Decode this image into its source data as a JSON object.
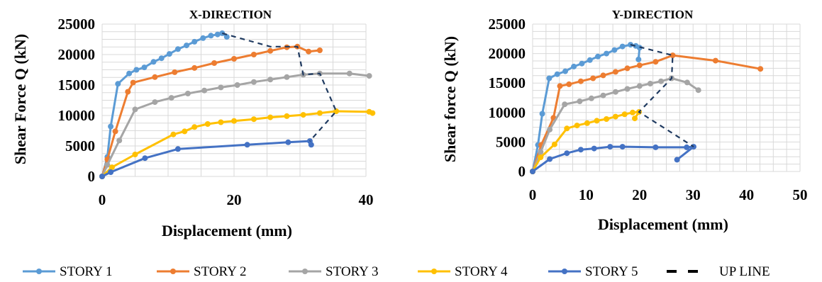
{
  "chart_data": [
    {
      "type": "line",
      "title": "X-DIRECTION",
      "xlabel": "Displacement (mm)",
      "ylabel": "Shear Force Q (kN)",
      "xlim": [
        0,
        40
      ],
      "ylim": [
        0,
        25000
      ],
      "xticks": [
        "0",
        "20",
        "40"
      ],
      "yticks": [
        "0",
        "5000",
        "10000",
        "15000",
        "20000",
        "25000"
      ],
      "grid": true,
      "series": [
        {
          "name": "STORY 1",
          "color": "#5b9bd5",
          "points": [
            [
              0,
              0
            ],
            [
              0.8,
              3200
            ],
            [
              1.3,
              8200
            ],
            [
              2.4,
              15200
            ],
            [
              4.1,
              16900
            ],
            [
              5.2,
              17500
            ],
            [
              6.4,
              17900
            ],
            [
              7.8,
              18800
            ],
            [
              9,
              19400
            ],
            [
              10.2,
              20100
            ],
            [
              11.5,
              20900
            ],
            [
              12.8,
              21500
            ],
            [
              14,
              22100
            ],
            [
              15.3,
              22700
            ],
            [
              16.5,
              23100
            ],
            [
              17.5,
              23300
            ],
            [
              18.2,
              23500
            ],
            [
              18.9,
              22900
            ]
          ]
        },
        {
          "name": "STORY 2",
          "color": "#ed7d31",
          "points": [
            [
              0,
              0
            ],
            [
              0.8,
              2800
            ],
            [
              2,
              7400
            ],
            [
              3.9,
              13900
            ],
            [
              4.7,
              15400
            ],
            [
              8,
              16300
            ],
            [
              11,
              17100
            ],
            [
              14,
              17800
            ],
            [
              17,
              18600
            ],
            [
              20,
              19300
            ],
            [
              23,
              20000
            ],
            [
              25.5,
              20600
            ],
            [
              28,
              21200
            ],
            [
              29.6,
              21300
            ],
            [
              31.3,
              20500
            ],
            [
              33,
              20700
            ]
          ]
        },
        {
          "name": "STORY 3",
          "color": "#a5a5a5",
          "points": [
            [
              0,
              0
            ],
            [
              0.8,
              1900
            ],
            [
              2.6,
              5900
            ],
            [
              5,
              11000
            ],
            [
              8,
              12200
            ],
            [
              10.5,
              12900
            ],
            [
              13,
              13600
            ],
            [
              15.5,
              14100
            ],
            [
              18,
              14600
            ],
            [
              20.5,
              15000
            ],
            [
              23,
              15500
            ],
            [
              25.5,
              15900
            ],
            [
              28,
              16300
            ],
            [
              30.5,
              16700
            ],
            [
              33,
              16900
            ],
            [
              37.5,
              16900
            ],
            [
              40.5,
              16500
            ]
          ]
        },
        {
          "name": "STORY 4",
          "color": "#ffc000",
          "points": [
            [
              0,
              0
            ],
            [
              1.5,
              1500
            ],
            [
              5,
              3600
            ],
            [
              10.8,
              6900
            ],
            [
              12.5,
              7400
            ],
            [
              14,
              8100
            ],
            [
              16,
              8600
            ],
            [
              18,
              8900
            ],
            [
              20,
              9100
            ],
            [
              23,
              9400
            ],
            [
              25.5,
              9700
            ],
            [
              28,
              9900
            ],
            [
              30.5,
              10100
            ],
            [
              33,
              10400
            ],
            [
              35.5,
              10700
            ],
            [
              40.5,
              10600
            ],
            [
              41,
              10400
            ]
          ]
        },
        {
          "name": "STORY 5",
          "color": "#4472c4",
          "points": [
            [
              0,
              0
            ],
            [
              1.3,
              700
            ],
            [
              6.5,
              3000
            ],
            [
              11.5,
              4500
            ],
            [
              22,
              5200
            ],
            [
              28.2,
              5600
            ],
            [
              31.5,
              5800
            ],
            [
              31.7,
              5200
            ]
          ]
        },
        {
          "name": "UP LINE",
          "color": "#1f3a60",
          "dashed": true,
          "points": [
            [
              18.2,
              23500
            ],
            [
              25.5,
              21300
            ],
            [
              29.6,
              21300
            ],
            [
              30.5,
              16700
            ],
            [
              33,
              16900
            ],
            [
              35.5,
              10700
            ],
            [
              31.5,
              5800
            ]
          ]
        }
      ]
    },
    {
      "type": "line",
      "title": "Y-DIRECTION",
      "xlabel": "Displacement (mm)",
      "ylabel": "Shear force Q (kN)",
      "xlim": [
        0,
        50
      ],
      "ylim": [
        0,
        25000
      ],
      "xticks": [
        "0",
        "10",
        "20",
        "30",
        "40",
        "50"
      ],
      "yticks": [
        "0",
        "5000",
        "10000",
        "15000",
        "20000",
        "25000"
      ],
      "grid": true,
      "series": [
        {
          "name": "STORY 1",
          "color": "#5b9bd5",
          "points": [
            [
              0,
              0
            ],
            [
              1,
              4500
            ],
            [
              1.8,
              9800
            ],
            [
              3.1,
              15800
            ],
            [
              4.6,
              16500
            ],
            [
              6.1,
              17000
            ],
            [
              7.7,
              17800
            ],
            [
              9.2,
              18300
            ],
            [
              10.7,
              18900
            ],
            [
              12.2,
              19500
            ],
            [
              13.8,
              20000
            ],
            [
              15.3,
              20600
            ],
            [
              16.8,
              21200
            ],
            [
              18.3,
              21500
            ],
            [
              19.3,
              21300
            ],
            [
              20,
              21000
            ],
            [
              19.8,
              19000
            ]
          ]
        },
        {
          "name": "STORY 2",
          "color": "#ed7d31",
          "points": [
            [
              0,
              0
            ],
            [
              1.6,
              4500
            ],
            [
              3.9,
              9100
            ],
            [
              5.1,
              14500
            ],
            [
              6.8,
              14800
            ],
            [
              9,
              15300
            ],
            [
              11.3,
              15800
            ],
            [
              13.2,
              16300
            ],
            [
              15.5,
              16900
            ],
            [
              17.7,
              17500
            ],
            [
              20,
              18000
            ],
            [
              23,
              18600
            ],
            [
              26.2,
              19700
            ],
            [
              34.2,
              18800
            ],
            [
              42.6,
              17400
            ]
          ]
        },
        {
          "name": "STORY 3",
          "color": "#a5a5a5",
          "points": [
            [
              0,
              0
            ],
            [
              1.5,
              3300
            ],
            [
              3.2,
              7100
            ],
            [
              6,
              11400
            ],
            [
              8.8,
              11900
            ],
            [
              11,
              12400
            ],
            [
              13.2,
              12900
            ],
            [
              15.5,
              13500
            ],
            [
              17.7,
              14000
            ],
            [
              20,
              14500
            ],
            [
              22,
              14900
            ],
            [
              24,
              15300
            ],
            [
              26,
              15800
            ],
            [
              28.9,
              15100
            ],
            [
              31,
              13800
            ]
          ]
        },
        {
          "name": "STORY 4",
          "color": "#ffc000",
          "points": [
            [
              0,
              0
            ],
            [
              1.5,
              2400
            ],
            [
              4.1,
              4600
            ],
            [
              6.4,
              7300
            ],
            [
              8.3,
              7800
            ],
            [
              10.2,
              8200
            ],
            [
              12,
              8600
            ],
            [
              13.8,
              8900
            ],
            [
              15.5,
              9300
            ],
            [
              17.2,
              9700
            ],
            [
              18.7,
              10000
            ],
            [
              19.9,
              10100
            ],
            [
              19.1,
              9000
            ]
          ]
        },
        {
          "name": "STORY 5",
          "color": "#4472c4",
          "points": [
            [
              0,
              0
            ],
            [
              3.2,
              2100
            ],
            [
              6.4,
              3100
            ],
            [
              9,
              3700
            ],
            [
              11.5,
              3900
            ],
            [
              14.5,
              4200
            ],
            [
              16.8,
              4200
            ],
            [
              23,
              4100
            ],
            [
              28.8,
              4100
            ],
            [
              30.1,
              4200
            ],
            [
              27,
              2000
            ]
          ]
        },
        {
          "name": "UP LINE",
          "color": "#1f3a60",
          "dashed": true,
          "points": [
            [
              18.3,
              21500
            ],
            [
              26.2,
              19700
            ],
            [
              26,
              15800
            ],
            [
              19.9,
              10100
            ],
            [
              30.1,
              4200
            ]
          ]
        }
      ]
    }
  ],
  "legend": [
    {
      "label": "STORY 1",
      "color": "#5b9bd5",
      "style": "line-marker"
    },
    {
      "label": "STORY 2",
      "color": "#ed7d31",
      "style": "line-marker"
    },
    {
      "label": "STORY 3",
      "color": "#a5a5a5",
      "style": "line-marker"
    },
    {
      "label": "STORY 4",
      "color": "#ffc000",
      "style": "line-marker"
    },
    {
      "label": "STORY 5",
      "color": "#4472c4",
      "style": "line-marker"
    },
    {
      "label": "UP LINE",
      "color": "#000000",
      "style": "dashed"
    }
  ]
}
